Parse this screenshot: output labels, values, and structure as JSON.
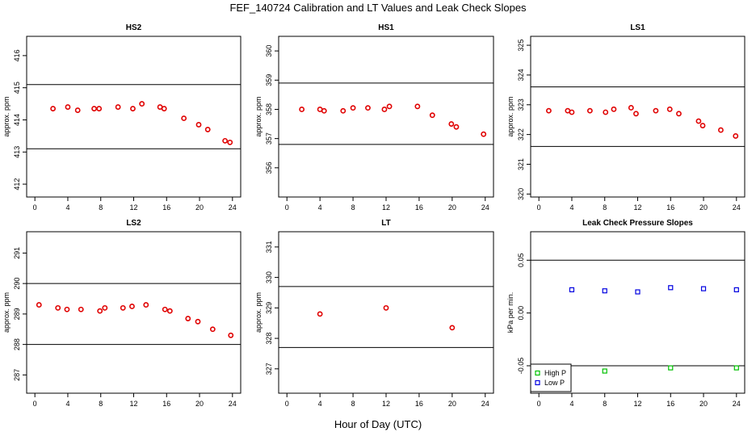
{
  "title": "FEF_140724  Calibration and LT Values and Leak Check Slopes",
  "xlabel": "Hour of Day (UTC)",
  "colors": {
    "red": "#e00000",
    "green": "#00c000",
    "blue": "#0000e0"
  },
  "chart_data": [
    {
      "type": "scatter",
      "title": "HS2",
      "ylabel": "approx. ppm",
      "xlim": [
        -1,
        25
      ],
      "ylim": [
        411.6,
        416.6
      ],
      "xticks": [
        0,
        4,
        8,
        12,
        16,
        20,
        24
      ],
      "yticks": [
        412,
        413,
        414,
        415,
        416
      ],
      "hlines": [
        415.1,
        413.1
      ],
      "series": [
        {
          "marker": "circle",
          "color": "red",
          "x": [
            2.2,
            4,
            5.2,
            7.2,
            7.8,
            10.1,
            11.9,
            13,
            15.2,
            15.7,
            18.1,
            19.9,
            21,
            23.1,
            23.7
          ],
          "y": [
            414.35,
            414.4,
            414.3,
            414.35,
            414.35,
            414.4,
            414.35,
            414.5,
            414.4,
            414.35,
            414.05,
            413.85,
            413.7,
            413.35,
            413.3
          ]
        }
      ]
    },
    {
      "type": "scatter",
      "title": "HS1",
      "ylabel": "approx. ppm",
      "xlim": [
        -1,
        25
      ],
      "ylim": [
        355,
        360.5
      ],
      "xticks": [
        0,
        4,
        8,
        12,
        16,
        20,
        24
      ],
      "yticks": [
        356,
        357,
        358,
        359,
        360
      ],
      "hlines": [
        358.9,
        356.8
      ],
      "series": [
        {
          "marker": "circle",
          "color": "red",
          "x": [
            1.8,
            4,
            4.5,
            6.8,
            8,
            9.8,
            11.8,
            12.4,
            15.8,
            17.6,
            19.9,
            20.5,
            23.8
          ],
          "y": [
            358,
            358,
            357.95,
            357.95,
            358.05,
            358.05,
            358,
            358.1,
            358.1,
            357.8,
            357.5,
            357.4,
            357.15
          ]
        }
      ]
    },
    {
      "type": "scatter",
      "title": "LS1",
      "ylabel": "approx. ppm",
      "xlim": [
        -1,
        25
      ],
      "ylim": [
        319.9,
        325.3
      ],
      "xticks": [
        0,
        4,
        8,
        12,
        16,
        20,
        24
      ],
      "yticks": [
        320,
        321,
        322,
        323,
        324,
        325
      ],
      "hlines": [
        323.6,
        321.6
      ],
      "series": [
        {
          "marker": "circle",
          "color": "red",
          "x": [
            1.2,
            3.5,
            4,
            6.2,
            8.1,
            9.1,
            11.2,
            11.8,
            14.2,
            15.9,
            17,
            19.4,
            19.9,
            22.1,
            23.9
          ],
          "y": [
            322.8,
            322.8,
            322.75,
            322.8,
            322.75,
            322.85,
            322.9,
            322.7,
            322.8,
            322.85,
            322.7,
            322.45,
            322.3,
            322.15,
            321.95
          ]
        }
      ]
    },
    {
      "type": "scatter",
      "title": "LS2",
      "ylabel": "approx. ppm",
      "xlim": [
        -1,
        25
      ],
      "ylim": [
        286.4,
        291.7
      ],
      "xticks": [
        0,
        4,
        8,
        12,
        16,
        20,
        24
      ],
      "yticks": [
        287,
        288,
        289,
        290,
        291
      ],
      "hlines": [
        290,
        288
      ],
      "series": [
        {
          "marker": "circle",
          "color": "red",
          "x": [
            0.5,
            2.8,
            3.9,
            5.6,
            7.9,
            8.5,
            10.7,
            11.8,
            13.5,
            15.8,
            16.4,
            18.6,
            19.8,
            21.6,
            23.8
          ],
          "y": [
            289.3,
            289.2,
            289.15,
            289.15,
            289.1,
            289.2,
            289.2,
            289.25,
            289.3,
            289.15,
            289.1,
            288.85,
            288.75,
            288.5,
            288.3
          ]
        }
      ]
    },
    {
      "type": "scatter",
      "title": "LT",
      "ylabel": "approx. ppm",
      "xlim": [
        -1,
        25
      ],
      "ylim": [
        326.2,
        331.5
      ],
      "xticks": [
        0,
        4,
        8,
        12,
        16,
        20,
        24
      ],
      "yticks": [
        327,
        328,
        329,
        330,
        331
      ],
      "hlines": [
        329.7,
        327.7
      ],
      "series": [
        {
          "marker": "circle",
          "color": "red",
          "x": [
            4,
            12,
            20
          ],
          "y": [
            328.8,
            329,
            328.35
          ]
        }
      ]
    },
    {
      "type": "scatter",
      "title": "Leak Check Pressure Slopes",
      "ylabel": "kPa per min.",
      "xlim": [
        -1,
        25
      ],
      "ylim": [
        -0.076,
        0.077
      ],
      "xticks": [
        0,
        4,
        8,
        12,
        16,
        20,
        24
      ],
      "yticks": [
        -0.05,
        0,
        0.05
      ],
      "ytick_labels": [
        "-0.05",
        "0.00",
        "0.05"
      ],
      "hlines": [
        0.05,
        -0.05
      ],
      "legend": "bottom-left",
      "series": [
        {
          "name": "High P",
          "marker": "square",
          "color": "green",
          "x": [
            8,
            16,
            24
          ],
          "y": [
            -0.055,
            -0.052,
            -0.052
          ]
        },
        {
          "name": "Low P",
          "marker": "square",
          "color": "blue",
          "x": [
            4,
            8,
            12,
            16,
            20,
            24
          ],
          "y": [
            0.022,
            0.021,
            0.02,
            0.024,
            0.023,
            0.022
          ]
        }
      ]
    }
  ]
}
